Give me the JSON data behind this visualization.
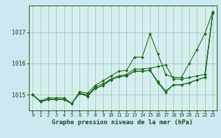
{
  "title": "Graphe pression niveau de la mer (hPa)",
  "bg_color": "#cce8f0",
  "plot_bg_color": "#d6eeee",
  "line_color": "#1a6b1a",
  "grid_color": "#99bbbb",
  "text_color": "#1a4a1a",
  "xlim": [
    -0.5,
    23.5
  ],
  "ylim": [
    1014.5,
    1017.85
  ],
  "yticks": [
    1015,
    1016,
    1017
  ],
  "xticks": [
    0,
    1,
    2,
    3,
    4,
    5,
    6,
    7,
    8,
    9,
    10,
    11,
    12,
    13,
    14,
    15,
    16,
    17,
    18,
    19,
    20,
    21,
    22,
    23
  ],
  "series": [
    [
      1015.0,
      1014.8,
      1014.9,
      1014.9,
      1014.9,
      1014.72,
      1015.1,
      1015.05,
      1015.3,
      1015.45,
      1015.6,
      1015.75,
      1015.78,
      1016.2,
      1016.2,
      1016.95,
      1016.3,
      1015.65,
      1015.55,
      1015.55,
      1016.0,
      1016.45,
      1016.95,
      1017.65
    ],
    [
      1015.0,
      1014.78,
      1014.85,
      1014.85,
      1014.85,
      1014.72,
      1015.05,
      1014.95,
      1015.25,
      1015.35,
      1015.5,
      1015.6,
      1015.65,
      1015.82,
      1015.82,
      1015.85,
      1015.9,
      1015.95,
      1015.5,
      1015.5,
      1015.55,
      1015.6,
      1015.65,
      1017.6
    ],
    [
      1015.0,
      1014.78,
      1014.85,
      1014.85,
      1014.85,
      1014.72,
      1015.05,
      1014.95,
      1015.2,
      1015.3,
      1015.48,
      1015.58,
      1015.6,
      1015.75,
      1015.75,
      1015.78,
      1015.38,
      1015.08,
      1015.32,
      1015.32,
      1015.38,
      1015.48,
      1015.55,
      1017.6
    ],
    [
      1015.0,
      1014.78,
      1014.85,
      1014.85,
      1014.85,
      1014.72,
      1015.05,
      1015.0,
      1015.2,
      1015.3,
      1015.48,
      1015.58,
      1015.6,
      1015.75,
      1015.75,
      1015.78,
      1015.42,
      1015.12,
      1015.32,
      1015.32,
      1015.38,
      1015.48,
      1015.55,
      1017.6
    ]
  ]
}
